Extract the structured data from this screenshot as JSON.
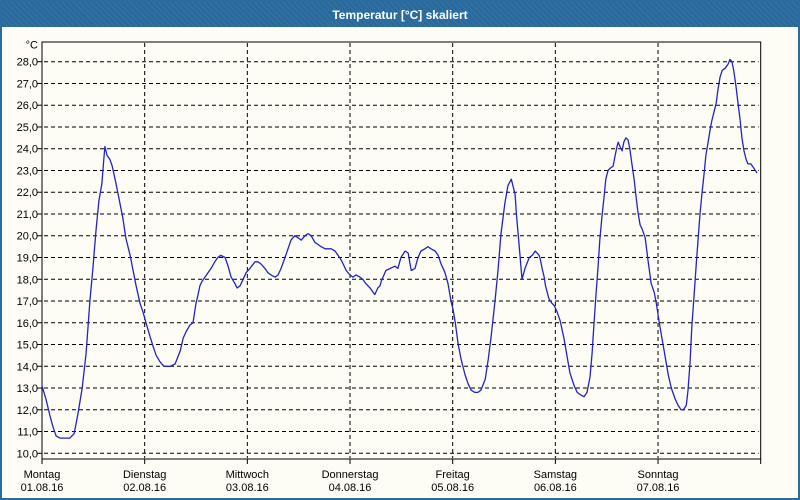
{
  "window": {
    "title": "Temperatur [°C] skaliert"
  },
  "colors": {
    "titlebar": "#2A6C9F",
    "border": "#2A6C9F",
    "background": "#FDFDF6",
    "line": "#2222C8",
    "grid": "#000000",
    "text": "#000000",
    "title_text": "#FFFFFF"
  },
  "chart_data": {
    "type": "line",
    "title": "Temperatur [°C] skaliert",
    "grid": "dashed",
    "legend": "none",
    "y_axis": {
      "unit_label": "°C",
      "min": 10,
      "max": 28,
      "step": 1,
      "tick_labels": [
        "28,0",
        "27,0",
        "26,0",
        "25,0",
        "24,0",
        "23,0",
        "22,0",
        "21,0",
        "20,0",
        "19,0",
        "18,0",
        "17,0",
        "16,0",
        "15,0",
        "14,0",
        "13,0",
        "12,0",
        "11,0",
        "10,0"
      ]
    },
    "x_axis": {
      "range_hours": [
        0,
        168
      ],
      "days": [
        {
          "label": "Montag",
          "date": "01.08.16"
        },
        {
          "label": "Dienstag",
          "date": "02.08.16"
        },
        {
          "label": "Mittwoch",
          "date": "03.08.16"
        },
        {
          "label": "Donnerstag",
          "date": "04.08.16"
        },
        {
          "label": "Freitag",
          "date": "05.08.16"
        },
        {
          "label": "Samstag",
          "date": "06.08.16"
        },
        {
          "label": "Sonntag",
          "date": "07.08.16"
        }
      ]
    },
    "series": [
      {
        "name": "Temperatur",
        "unit": "°C",
        "points_hours_temp": [
          [
            0,
            13.1
          ],
          [
            0.9,
            12.5
          ],
          [
            1.9,
            11.7
          ],
          [
            2.6,
            11.2
          ],
          [
            3.3,
            10.8
          ],
          [
            4.2,
            10.7
          ],
          [
            6.5,
            10.7
          ],
          [
            7.5,
            10.9
          ],
          [
            8.4,
            11.8
          ],
          [
            9.4,
            13.0
          ],
          [
            10.3,
            14.6
          ],
          [
            11.2,
            17.0
          ],
          [
            11.9,
            18.5
          ],
          [
            12.6,
            20.2
          ],
          [
            13.3,
            21.6
          ],
          [
            14.0,
            22.4
          ],
          [
            14.4,
            23.4
          ],
          [
            14.7,
            24.1
          ],
          [
            15.2,
            23.7
          ],
          [
            15.9,
            23.5
          ],
          [
            16.4,
            23.2
          ],
          [
            17.3,
            22.4
          ],
          [
            18.2,
            21.5
          ],
          [
            18.9,
            20.8
          ],
          [
            19.6,
            19.9
          ],
          [
            20.6,
            19.1
          ],
          [
            21.3,
            18.4
          ],
          [
            22.0,
            17.7
          ],
          [
            22.9,
            16.9
          ],
          [
            23.6,
            16.5
          ],
          [
            24.3,
            16.0
          ],
          [
            25.2,
            15.4
          ],
          [
            26.0,
            14.9
          ],
          [
            26.7,
            14.5
          ],
          [
            27.6,
            14.2
          ],
          [
            28.5,
            14.0
          ],
          [
            29.9,
            14.0
          ],
          [
            31.1,
            14.1
          ],
          [
            32.3,
            14.7
          ],
          [
            33.0,
            15.3
          ],
          [
            33.7,
            15.6
          ],
          [
            34.6,
            15.9
          ],
          [
            35.3,
            16.0
          ],
          [
            36.0,
            16.9
          ],
          [
            36.5,
            17.3
          ],
          [
            36.9,
            17.7
          ],
          [
            37.4,
            17.9
          ],
          [
            38.1,
            18.1
          ],
          [
            38.8,
            18.3
          ],
          [
            39.5,
            18.5
          ],
          [
            40.4,
            18.8
          ],
          [
            41.1,
            19.0
          ],
          [
            41.8,
            19.1
          ],
          [
            42.8,
            19.0
          ],
          [
            43.5,
            18.6
          ],
          [
            44.2,
            18.1
          ],
          [
            45.1,
            17.8
          ],
          [
            45.6,
            17.6
          ],
          [
            46.3,
            17.7
          ],
          [
            47.0,
            18.0
          ],
          [
            47.7,
            18.3
          ],
          [
            48.6,
            18.5
          ],
          [
            49.8,
            18.8
          ],
          [
            50.5,
            18.8
          ],
          [
            51.2,
            18.7
          ],
          [
            52.1,
            18.5
          ],
          [
            52.8,
            18.3
          ],
          [
            53.5,
            18.2
          ],
          [
            54.5,
            18.1
          ],
          [
            55.2,
            18.2
          ],
          [
            55.9,
            18.5
          ],
          [
            56.8,
            19.0
          ],
          [
            57.5,
            19.4
          ],
          [
            58.2,
            19.8
          ],
          [
            59.1,
            20.0
          ],
          [
            59.9,
            19.9
          ],
          [
            60.6,
            19.8
          ],
          [
            61.5,
            20.0
          ],
          [
            62.2,
            20.1
          ],
          [
            62.9,
            20.0
          ],
          [
            63.8,
            19.7
          ],
          [
            64.5,
            19.6
          ],
          [
            65.2,
            19.5
          ],
          [
            66.2,
            19.4
          ],
          [
            67.6,
            19.4
          ],
          [
            68.5,
            19.3
          ],
          [
            69.2,
            19.1
          ],
          [
            69.9,
            18.9
          ],
          [
            70.4,
            18.7
          ],
          [
            71.1,
            18.4
          ],
          [
            72.0,
            18.2
          ],
          [
            72.7,
            18.1
          ],
          [
            73.4,
            18.2
          ],
          [
            74.3,
            18.1
          ],
          [
            75.0,
            18.0
          ],
          [
            75.7,
            17.8
          ],
          [
            76.7,
            17.6
          ],
          [
            77.4,
            17.4
          ],
          [
            77.8,
            17.3
          ],
          [
            78.5,
            17.6
          ],
          [
            79.0,
            17.7
          ],
          [
            79.3,
            17.9
          ],
          [
            79.7,
            18.1
          ],
          [
            80.4,
            18.4
          ],
          [
            81.4,
            18.5
          ],
          [
            82.5,
            18.6
          ],
          [
            83.2,
            18.5
          ],
          [
            83.9,
            19.0
          ],
          [
            84.9,
            19.3
          ],
          [
            85.6,
            19.2
          ],
          [
            86.3,
            18.4
          ],
          [
            87.2,
            18.5
          ],
          [
            87.9,
            19.0
          ],
          [
            88.6,
            19.3
          ],
          [
            89.5,
            19.4
          ],
          [
            90.2,
            19.5
          ],
          [
            90.9,
            19.4
          ],
          [
            91.9,
            19.3
          ],
          [
            92.6,
            19.1
          ],
          [
            93.3,
            18.7
          ],
          [
            94.2,
            18.3
          ],
          [
            94.9,
            17.8
          ],
          [
            95.6,
            17.0
          ],
          [
            96.1,
            16.6
          ],
          [
            96.6,
            16.0
          ],
          [
            97.3,
            15.0
          ],
          [
            98.0,
            14.3
          ],
          [
            98.9,
            13.6
          ],
          [
            99.6,
            13.2
          ],
          [
            100.3,
            12.9
          ],
          [
            101.2,
            12.8
          ],
          [
            101.9,
            12.8
          ],
          [
            102.6,
            12.9
          ],
          [
            103.6,
            13.4
          ],
          [
            104.3,
            14.3
          ],
          [
            105.0,
            15.4
          ],
          [
            105.9,
            17.0
          ],
          [
            106.6,
            18.4
          ],
          [
            107.3,
            20.1
          ],
          [
            108.2,
            21.5
          ],
          [
            108.9,
            22.3
          ],
          [
            109.7,
            22.6
          ],
          [
            110.6,
            21.9
          ],
          [
            110.9,
            21.0
          ],
          [
            111.3,
            20.1
          ],
          [
            111.7,
            19.2
          ],
          [
            112.2,
            18.0
          ],
          [
            112.9,
            18.5
          ],
          [
            113.9,
            19.0
          ],
          [
            114.6,
            19.1
          ],
          [
            115.3,
            19.3
          ],
          [
            116.2,
            19.1
          ],
          [
            116.5,
            18.9
          ],
          [
            116.9,
            18.5
          ],
          [
            117.4,
            18.1
          ],
          [
            117.7,
            17.7
          ],
          [
            118.5,
            17.1
          ],
          [
            119.2,
            16.9
          ],
          [
            119.7,
            16.8
          ],
          [
            120.4,
            16.5
          ],
          [
            121.1,
            16.1
          ],
          [
            122.0,
            15.3
          ],
          [
            122.7,
            14.5
          ],
          [
            123.4,
            13.7
          ],
          [
            124.4,
            13.1
          ],
          [
            125.1,
            12.8
          ],
          [
            125.8,
            12.7
          ],
          [
            126.7,
            12.6
          ],
          [
            127.4,
            12.8
          ],
          [
            128.1,
            13.5
          ],
          [
            128.6,
            14.6
          ],
          [
            129.0,
            15.9
          ],
          [
            129.5,
            17.3
          ],
          [
            130.0,
            18.6
          ],
          [
            130.4,
            19.8
          ],
          [
            130.9,
            20.9
          ],
          [
            131.4,
            21.8
          ],
          [
            131.8,
            22.6
          ],
          [
            132.3,
            23.0
          ],
          [
            132.8,
            23.1
          ],
          [
            133.5,
            23.2
          ],
          [
            134.0,
            23.7
          ],
          [
            134.4,
            24.1
          ],
          [
            134.7,
            24.3
          ],
          [
            135.1,
            24.1
          ],
          [
            135.6,
            23.9
          ],
          [
            136.0,
            24.3
          ],
          [
            136.5,
            24.5
          ],
          [
            137.0,
            24.4
          ],
          [
            137.4,
            24.0
          ],
          [
            137.9,
            23.3
          ],
          [
            138.4,
            22.6
          ],
          [
            138.8,
            21.9
          ],
          [
            139.3,
            21.1
          ],
          [
            139.8,
            20.5
          ],
          [
            140.3,
            20.3
          ],
          [
            141.0,
            19.9
          ],
          [
            141.7,
            18.8
          ],
          [
            142.4,
            17.8
          ],
          [
            143.1,
            17.4
          ],
          [
            143.6,
            16.9
          ],
          [
            144.3,
            16.0
          ],
          [
            145.0,
            15.2
          ],
          [
            145.7,
            14.4
          ],
          [
            146.4,
            13.6
          ],
          [
            147.1,
            13.0
          ],
          [
            148.0,
            12.5
          ],
          [
            148.7,
            12.2
          ],
          [
            149.4,
            12.0
          ],
          [
            149.9,
            12.0
          ],
          [
            150.6,
            12.2
          ],
          [
            151.0,
            12.9
          ],
          [
            151.5,
            14.2
          ],
          [
            151.9,
            15.8
          ],
          [
            152.4,
            17.2
          ],
          [
            152.9,
            18.6
          ],
          [
            153.4,
            19.9
          ],
          [
            153.8,
            21.0
          ],
          [
            154.3,
            22.0
          ],
          [
            154.8,
            22.9
          ],
          [
            155.2,
            23.7
          ],
          [
            155.7,
            24.3
          ],
          [
            156.2,
            24.9
          ],
          [
            156.6,
            25.3
          ],
          [
            157.1,
            25.7
          ],
          [
            157.6,
            26.1
          ],
          [
            158.0,
            26.7
          ],
          [
            158.5,
            27.3
          ],
          [
            159.0,
            27.6
          ],
          [
            159.7,
            27.7
          ],
          [
            160.4,
            27.9
          ],
          [
            160.8,
            28.1
          ],
          [
            161.3,
            28.0
          ],
          [
            161.7,
            27.6
          ],
          [
            162.2,
            26.9
          ],
          [
            162.7,
            26.1
          ],
          [
            163.2,
            25.3
          ],
          [
            163.6,
            24.5
          ],
          [
            164.1,
            23.9
          ],
          [
            164.6,
            23.5
          ],
          [
            165.0,
            23.3
          ],
          [
            165.7,
            23.3
          ],
          [
            166.4,
            23.1
          ],
          [
            167.1,
            22.9
          ]
        ]
      }
    ]
  }
}
